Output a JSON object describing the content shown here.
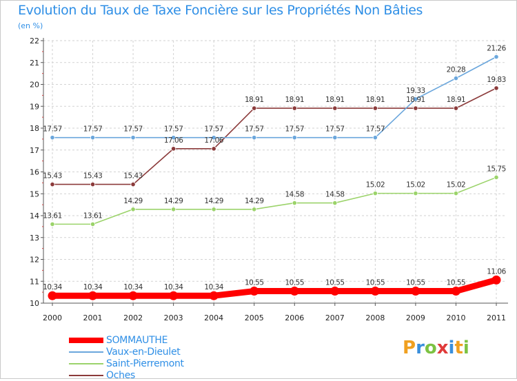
{
  "header": {
    "title": "Evolution du Taux de Taxe Foncière sur les Propriétés Non Bâties",
    "unit": "(en %)"
  },
  "branding": {
    "logo_text": "Proxiti",
    "logo_letters": [
      "P",
      "r",
      "o",
      "x",
      "i",
      "t",
      "i"
    ],
    "logo_colors": [
      "#f0a020",
      "#3a8fdc",
      "#7cc242",
      "#e03a3a",
      "#3a8fdc",
      "#f0a020",
      "#7cc242"
    ]
  },
  "chart_data": {
    "type": "line",
    "title": "Evolution du Taux de Taxe Foncière sur les Propriétés Non Bâties",
    "ylabel": "(en %)",
    "xlabel": "",
    "ylim": [
      10,
      22
    ],
    "yticks": [
      "10",
      "11",
      "12",
      "13",
      "14",
      "15",
      "16",
      "17",
      "18",
      "19",
      "20",
      "21",
      "22"
    ],
    "x": [
      "2000",
      "2001",
      "2002",
      "2003",
      "2004",
      "2005",
      "2006",
      "2007",
      "2008",
      "2009",
      "2010",
      "2011"
    ],
    "grid": true,
    "legend_position": "bottom-left",
    "series": [
      {
        "name": "SOMMAUTHE",
        "color": "#ff0000",
        "emphasis": true,
        "values": [
          10.34,
          10.34,
          10.34,
          10.34,
          10.34,
          10.55,
          10.55,
          10.55,
          10.55,
          10.55,
          10.55,
          11.06
        ],
        "labels": [
          "10.34",
          "10.34",
          "10.34",
          "10.34",
          "10.34",
          "10.55",
          "10.55",
          "10.55",
          "10.55",
          "10.55",
          "10.55",
          "11.06"
        ]
      },
      {
        "name": "Vaux-en-Dieulet",
        "color": "#6aa6dc",
        "emphasis": false,
        "values": [
          17.57,
          17.57,
          17.57,
          17.57,
          17.57,
          17.57,
          17.57,
          17.57,
          17.57,
          19.33,
          20.28,
          21.26
        ],
        "labels": [
          "17.57",
          "17.57",
          "17.57",
          "17.57",
          "17.57",
          "17.57",
          "17.57",
          "17.57",
          "17.57",
          "19.33",
          "20.28",
          "21.26"
        ]
      },
      {
        "name": "Saint-Pierremont",
        "color": "#9bd36a",
        "emphasis": false,
        "values": [
          13.61,
          13.61,
          14.29,
          14.29,
          14.29,
          14.29,
          14.58,
          14.58,
          15.02,
          15.02,
          15.02,
          15.75
        ],
        "labels": [
          "13.61",
          "13.61",
          "14.29",
          "14.29",
          "14.29",
          "14.29",
          "14.58",
          "14.58",
          "15.02",
          "15.02",
          "15.02",
          "15.75"
        ]
      },
      {
        "name": "Oches",
        "color": "#8b3a3a",
        "emphasis": false,
        "values": [
          15.43,
          15.43,
          15.43,
          17.06,
          17.06,
          18.91,
          18.91,
          18.91,
          18.91,
          18.91,
          18.91,
          19.83
        ],
        "labels": [
          "15.43",
          "15.43",
          "15.43",
          "17.06",
          "17.06",
          "18.91",
          "18.91",
          "18.91",
          "18.91",
          "18.91",
          "18.91",
          "19.83"
        ]
      }
    ]
  }
}
